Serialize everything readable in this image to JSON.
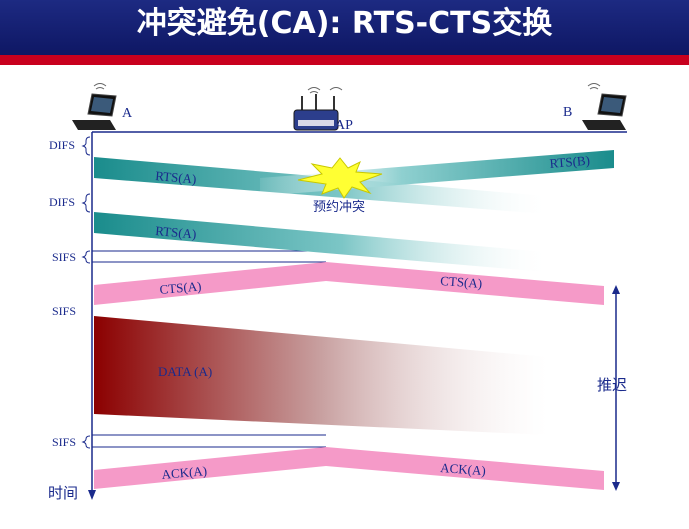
{
  "title": "冲突避免(CA): RTS-CTS交换",
  "stations": {
    "a": "A",
    "ap": "AP",
    "b": "B"
  },
  "interframe": {
    "difs": "DIFS",
    "sifs": "SIFS"
  },
  "frames": {
    "rts_a": "RTS(A)",
    "rts_b": "RTS(B)",
    "cts_a": "CTS(A)",
    "data_a": "DATA (A)",
    "ack_a": "ACK(A)"
  },
  "collision_label": "预约冲突",
  "defer_label": "推迟",
  "time_label": "时间",
  "colors": {
    "title_bg": "#16217a",
    "title_underline": "#c8001e",
    "teal": "#1a8c8c",
    "pink": "#f59ac8",
    "data_red": "#8b0000",
    "label_blue": "#1a2a8c",
    "collision_yellow": "#ffff33"
  },
  "icons": [
    "laptop-icon",
    "wireless-router-icon",
    "collision-star-icon",
    "wifi-signal-icon"
  ]
}
